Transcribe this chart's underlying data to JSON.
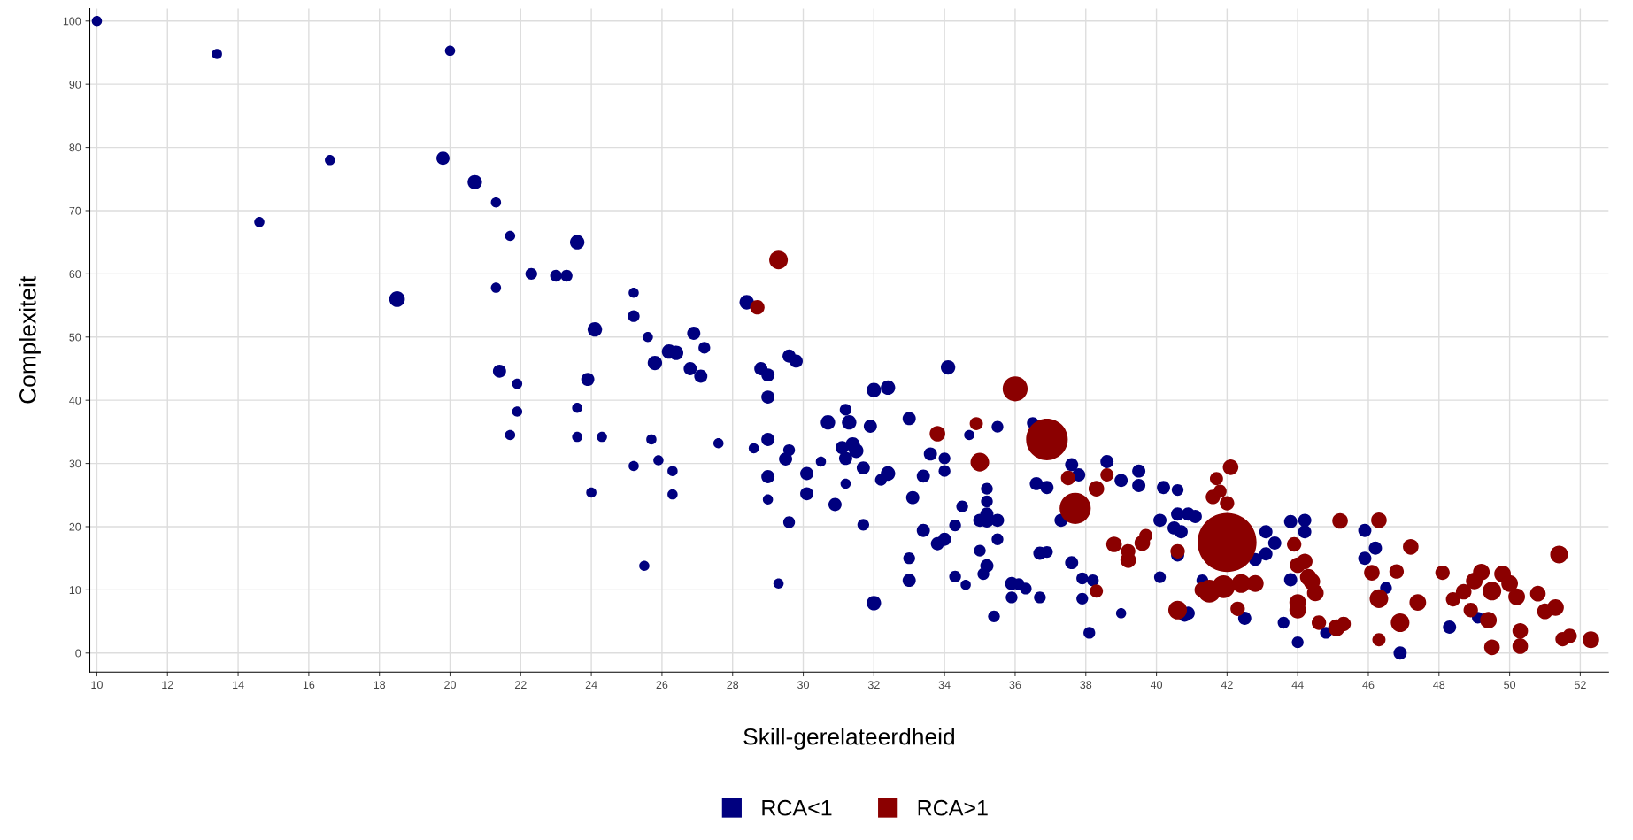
{
  "chart_data": {
    "type": "bubble",
    "xlabel": "Skill-gerelateerdheid",
    "ylabel": "Complexiteit",
    "xlim": [
      9.8,
      52.8
    ],
    "ylim": [
      -3,
      102
    ],
    "xticks": [
      10,
      12,
      14,
      16,
      18,
      20,
      22,
      24,
      26,
      28,
      30,
      32,
      34,
      36,
      38,
      40,
      42,
      44,
      46,
      48,
      50,
      52
    ],
    "yticks": [
      0,
      10,
      20,
      30,
      40,
      50,
      60,
      70,
      80,
      90,
      100
    ],
    "grid": true,
    "legend": "bottom",
    "marker": "circle",
    "series": [
      {
        "name": "RCA<1",
        "color": "#00007f",
        "x": [
          10,
          13.4,
          20,
          16.6,
          19.8,
          20.7,
          14.6,
          21.3,
          21.7,
          23.6,
          22.3,
          23,
          23.3,
          21.3,
          18.5,
          25.2,
          25.2,
          24.1,
          28.4,
          25.6,
          26.9,
          27.2,
          26.2,
          26.4,
          25.8,
          26.8,
          27.1,
          28.8,
          29,
          29.6,
          29.8,
          21.4,
          21.9,
          23.9,
          29,
          32,
          32.4,
          34.1,
          21.9,
          23.6,
          21.7,
          23.6,
          24.3,
          25.7,
          27.6,
          29,
          28.6,
          29.6,
          29.5,
          30.7,
          31.2,
          31.3,
          31.9,
          33,
          31.4,
          31.5,
          31.2,
          31.1,
          30.5,
          25.9,
          25.2,
          26.3,
          29,
          30.1,
          31.7,
          32.4,
          32.2,
          33.6,
          33.4,
          34,
          34,
          34.7,
          35.5,
          36.5,
          33.1,
          30.1,
          30.9,
          31.2,
          29,
          24,
          26.3,
          29.6,
          31.7,
          33.4,
          33.8,
          34,
          34.3,
          34.5,
          35.2,
          35.2,
          35.2,
          35.2,
          35,
          35.5,
          35.5,
          36.6,
          36.9,
          37.6,
          37.8,
          37.3,
          36.7,
          36.9,
          35,
          35.2,
          35.1,
          34.3,
          34.6,
          35.4,
          33,
          33,
          32,
          29.3,
          25.5,
          35.9,
          36.1,
          35.9,
          36.3,
          36.7,
          37.6,
          37.9,
          38.2,
          37.9,
          38.1,
          39,
          38.6,
          39.5,
          39,
          39.5,
          40.2,
          40.6,
          40.1,
          40.6,
          40.9,
          41.1,
          40.5,
          40.7,
          40.6,
          40.1,
          40.8,
          40.9,
          41.3,
          43.1,
          43.35,
          42.8,
          43.1,
          42.5,
          43.6,
          43.8,
          44.2,
          44.2,
          43.8,
          44,
          44.8,
          45.9,
          46.2,
          45.9,
          46.5,
          46.9,
          48.3,
          49.1
        ],
        "values": [
          100,
          94.8,
          95.3,
          78,
          78.3,
          74.5,
          68.2,
          71.3,
          66,
          65,
          60,
          59.7,
          59.7,
          57.8,
          56,
          57,
          53.3,
          51.2,
          55.5,
          50,
          50.6,
          48.3,
          47.7,
          47.5,
          45.9,
          45,
          43.8,
          45,
          44,
          47,
          46.2,
          44.6,
          42.6,
          43.3,
          40.5,
          41.6,
          42,
          45.2,
          38.2,
          38.8,
          34.5,
          34.2,
          34.2,
          33.8,
          33.2,
          33.8,
          32.4,
          32.1,
          30.7,
          36.5,
          38.5,
          36.5,
          35.9,
          37.1,
          33,
          32,
          30.8,
          32.5,
          30.3,
          30.5,
          29.6,
          28.8,
          27.9,
          28.4,
          29.3,
          28.4,
          27.4,
          31.5,
          28,
          30.8,
          28.8,
          34.5,
          35.8,
          36.4,
          24.6,
          25.2,
          23.5,
          26.8,
          24.3,
          25.4,
          25.1,
          20.7,
          20.3,
          19.4,
          17.3,
          18,
          20.2,
          23.2,
          26,
          24,
          22,
          21,
          21,
          21,
          18,
          26.8,
          26.2,
          29.8,
          28.2,
          21,
          15.8,
          16,
          16.2,
          13.8,
          12.5,
          12.1,
          10.8,
          5.8,
          15,
          11.5,
          7.9,
          11,
          13.8,
          11,
          10.9,
          8.8,
          10.2,
          8.8,
          14.3,
          11.8,
          11.5,
          8.6,
          3.2,
          6.3,
          30.3,
          28.8,
          27.3,
          26.5,
          26.2,
          25.8,
          21,
          22,
          22,
          21.6,
          19.8,
          19.2,
          15.5,
          12,
          6,
          6.3,
          11.5,
          19.2,
          17.4,
          14.8,
          15.7,
          5.5,
          4.8,
          20.8,
          21,
          19.2,
          11.6,
          1.7,
          3.2,
          19.4,
          16.6,
          15,
          10.3,
          0,
          4.1,
          5.6
        ],
        "sizes": [
          0.03,
          0.03,
          0.03,
          0.03,
          0.05,
          0.06,
          0.03,
          0.03,
          0.03,
          0.06,
          0.04,
          0.04,
          0.04,
          0.03,
          0.07,
          0.03,
          0.04,
          0.06,
          0.06,
          0.03,
          0.05,
          0.04,
          0.06,
          0.06,
          0.06,
          0.05,
          0.05,
          0.05,
          0.05,
          0.05,
          0.05,
          0.05,
          0.03,
          0.05,
          0.05,
          0.06,
          0.06,
          0.06,
          0.03,
          0.03,
          0.03,
          0.03,
          0.03,
          0.03,
          0.03,
          0.05,
          0.03,
          0.04,
          0.05,
          0.06,
          0.04,
          0.06,
          0.05,
          0.05,
          0.06,
          0.06,
          0.05,
          0.05,
          0.03,
          0.03,
          0.03,
          0.03,
          0.05,
          0.05,
          0.05,
          0.06,
          0.04,
          0.05,
          0.05,
          0.04,
          0.04,
          0.03,
          0.04,
          0.04,
          0.05,
          0.05,
          0.05,
          0.03,
          0.03,
          0.03,
          0.03,
          0.04,
          0.04,
          0.05,
          0.05,
          0.05,
          0.04,
          0.04,
          0.04,
          0.04,
          0.05,
          0.06,
          0.05,
          0.05,
          0.04,
          0.05,
          0.05,
          0.05,
          0.05,
          0.05,
          0.05,
          0.04,
          0.04,
          0.05,
          0.04,
          0.04,
          0.03,
          0.04,
          0.04,
          0.05,
          0.06,
          0.03,
          0.03,
          0.05,
          0.04,
          0.04,
          0.04,
          0.04,
          0.05,
          0.04,
          0.04,
          0.04,
          0.04,
          0.03,
          0.05,
          0.05,
          0.05,
          0.05,
          0.05,
          0.04,
          0.05,
          0.05,
          0.05,
          0.05,
          0.05,
          0.05,
          0.05,
          0.04,
          0.05,
          0.05,
          0.04,
          0.05,
          0.05,
          0.05,
          0.05,
          0.05,
          0.04,
          0.05,
          0.05,
          0.05,
          0.05,
          0.04,
          0.04,
          0.05,
          0.05,
          0.05,
          0.04,
          0.05,
          0.05,
          0.04
        ]
      },
      {
        "name": "RCA>1",
        "color": "#8b0000",
        "x": [
          29.3,
          28.7,
          33.8,
          34.9,
          35,
          36,
          36.9,
          37.7,
          37.5,
          38.3,
          38.6,
          38.3,
          38.8,
          39.2,
          39.2,
          39.6,
          39.7,
          40.6,
          40.6,
          41.3,
          41.6,
          41.7,
          41.8,
          42,
          42.1,
          42,
          41.5,
          41.9,
          42.4,
          42.3,
          42.8,
          43.9,
          44,
          44.2,
          44.5,
          44.4,
          44,
          44,
          44.3,
          44.6,
          45.1,
          45.3,
          45.2,
          46.3,
          46.1,
          46.3,
          46.8,
          47.2,
          47.4,
          46.9,
          46.3,
          48.1,
          48.4,
          48.7,
          49,
          49.2,
          49.5,
          49.4,
          49.5,
          49.8,
          50,
          50.2,
          50.3,
          50.3,
          50.8,
          51,
          51.3,
          51.4,
          51.5,
          51.7,
          52.3,
          48.9
        ],
        "values": [
          62.2,
          54.7,
          34.7,
          36.3,
          30.2,
          41.8,
          33.8,
          22.9,
          27.7,
          26,
          28.2,
          9.8,
          17.2,
          16.1,
          14.7,
          17.4,
          18.6,
          16.1,
          6.8,
          10,
          24.7,
          27.6,
          25.6,
          23.7,
          29.4,
          17.5,
          9.8,
          10.5,
          11,
          7,
          11,
          17.2,
          13.9,
          14.5,
          9.5,
          11.3,
          8,
          6.8,
          12,
          4.8,
          4,
          4.6,
          20.9,
          21,
          12.7,
          8.6,
          12.9,
          16.8,
          8,
          4.8,
          2.1,
          12.7,
          8.5,
          9.7,
          11.4,
          12.8,
          9.8,
          5.2,
          0.9,
          12.5,
          11,
          8.9,
          3.5,
          1.1,
          9.4,
          6.6,
          7.2,
          15.6,
          2.2,
          2.7,
          2.1,
          6.8
        ],
        "sizes": [
          0.1,
          0.06,
          0.07,
          0.05,
          0.1,
          0.18,
          0.5,
          0.28,
          0.06,
          0.07,
          0.05,
          0.05,
          0.07,
          0.06,
          0.07,
          0.07,
          0.05,
          0.06,
          0.1,
          0.07,
          0.06,
          0.05,
          0.05,
          0.06,
          0.07,
          1,
          0.15,
          0.15,
          0.1,
          0.06,
          0.08,
          0.06,
          0.07,
          0.07,
          0.08,
          0.08,
          0.08,
          0.08,
          0.08,
          0.06,
          0.08,
          0.06,
          0.07,
          0.07,
          0.07,
          0.1,
          0.06,
          0.07,
          0.08,
          0.1,
          0.05,
          0.06,
          0.06,
          0.07,
          0.08,
          0.08,
          0.1,
          0.08,
          0.07,
          0.08,
          0.08,
          0.08,
          0.07,
          0.07,
          0.07,
          0.07,
          0.08,
          0.09,
          0.06,
          0.06,
          0.08,
          0.06
        ]
      }
    ]
  }
}
